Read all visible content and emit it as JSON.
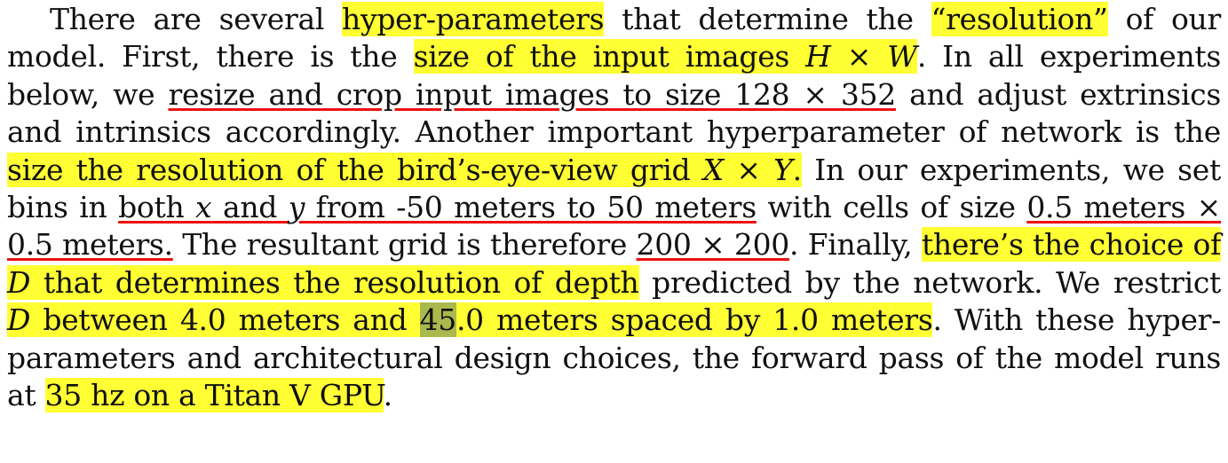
{
  "paragraph": {
    "l1": {
      "a": "There are several ",
      "b": "hyper-parameters",
      "c": " that determine the ",
      "d": "“resolution”",
      "e": " of our"
    },
    "l2": {
      "a": "model. First, there is the ",
      "b": "size of the input images ",
      "b_h": "H",
      "b_x": " × ",
      "b_w": "W",
      "c": ". In all experiments"
    },
    "l3": {
      "a": "below, we ",
      "b": "resize and crop input images to size 128 × 352",
      "c": " and adjust extrinsics"
    },
    "l4": {
      "a": "and intrinsics accordingly. Another important hyperparameter of network is the"
    },
    "l5": {
      "b": "size the resolution of the bird’s-eye-view grid ",
      "b_x": "X",
      "b_t": " × ",
      "b_y": "Y",
      "b_dot": ".",
      "c": " In our experiments, we set"
    },
    "l6": {
      "a": "bins in ",
      "b1": "both ",
      "b_x": "x",
      "b2": " and ",
      "b_y": "y",
      "b3": " from -50 meters to 50 meters",
      "c": " with cells of size ",
      "d": "0.5 meters ×"
    },
    "l7": {
      "a": "0.5 meters.",
      "b": " The resultant grid is therefore ",
      "c": "200 × 200",
      "d": ". Finally, ",
      "e": "there’s the choice of"
    },
    "l8": {
      "a_d": "D",
      "a": " that determines the resolution of depth",
      "b": " predicted by the network. We restrict"
    },
    "l9": {
      "a_d": "D",
      "a1": " between 4.0 meters and ",
      "a2": "45",
      "a3": ".0 meters spaced by 1.0 meters",
      "b": ". With these hyper-"
    },
    "l10": {
      "a": "parameters and architectural design choices, the forward pass of the model runs"
    },
    "l11": {
      "a": "at ",
      "b": "35 hz on a Titan V GPU",
      "c": "."
    }
  }
}
